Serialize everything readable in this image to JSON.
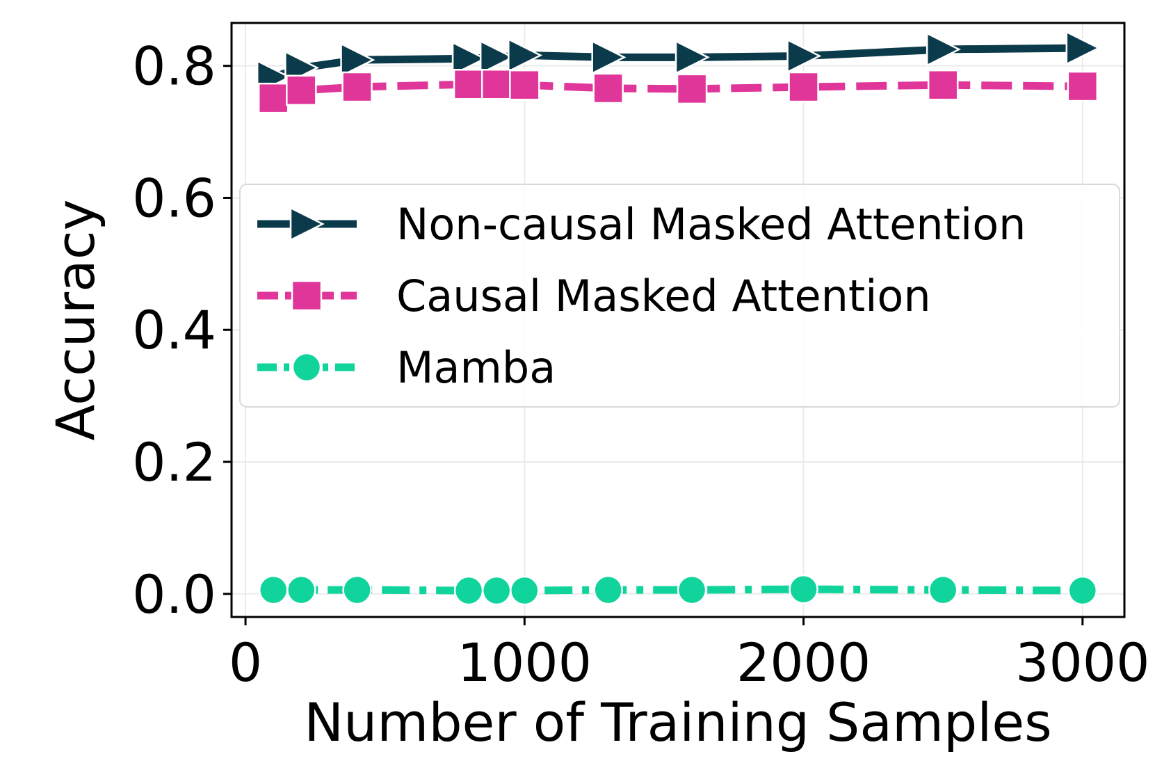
{
  "chart_data": {
    "type": "line",
    "title": "",
    "xlabel": "Number of Training Samples",
    "ylabel": "Accuracy",
    "xlim": [
      -50,
      3150
    ],
    "ylim": [
      -0.035,
      0.865
    ],
    "x_ticks": [
      0,
      1000,
      2000,
      3000
    ],
    "x_tick_labels": [
      "0",
      "1000",
      "2000",
      "3000"
    ],
    "y_ticks": [
      0.0,
      0.2,
      0.4,
      0.6,
      0.8
    ],
    "y_tick_labels": [
      "0.0",
      "0.2",
      "0.4",
      "0.6",
      "0.8"
    ],
    "grid": true,
    "legend_position": "center-right",
    "x": [
      100,
      200,
      400,
      800,
      900,
      1000,
      1300,
      1600,
      2000,
      2500,
      3000
    ],
    "series": [
      {
        "name": "Non-causal Masked Attention",
        "values": [
          0.783,
          0.797,
          0.809,
          0.811,
          0.813,
          0.816,
          0.813,
          0.813,
          0.815,
          0.825,
          0.827
        ],
        "color": "#0b3a4a",
        "marker": "triangle-right",
        "dash": "solid"
      },
      {
        "name": "Causal Masked Attention",
        "values": [
          0.751,
          0.763,
          0.768,
          0.772,
          0.772,
          0.771,
          0.766,
          0.765,
          0.768,
          0.771,
          0.769
        ],
        "color": "#e0369a",
        "marker": "square",
        "dash": "dashed"
      },
      {
        "name": "Mamba",
        "values": [
          0.006,
          0.006,
          0.006,
          0.005,
          0.005,
          0.005,
          0.006,
          0.006,
          0.007,
          0.006,
          0.005
        ],
        "color": "#10d49c",
        "marker": "circle",
        "dash": "dashdot"
      }
    ]
  }
}
